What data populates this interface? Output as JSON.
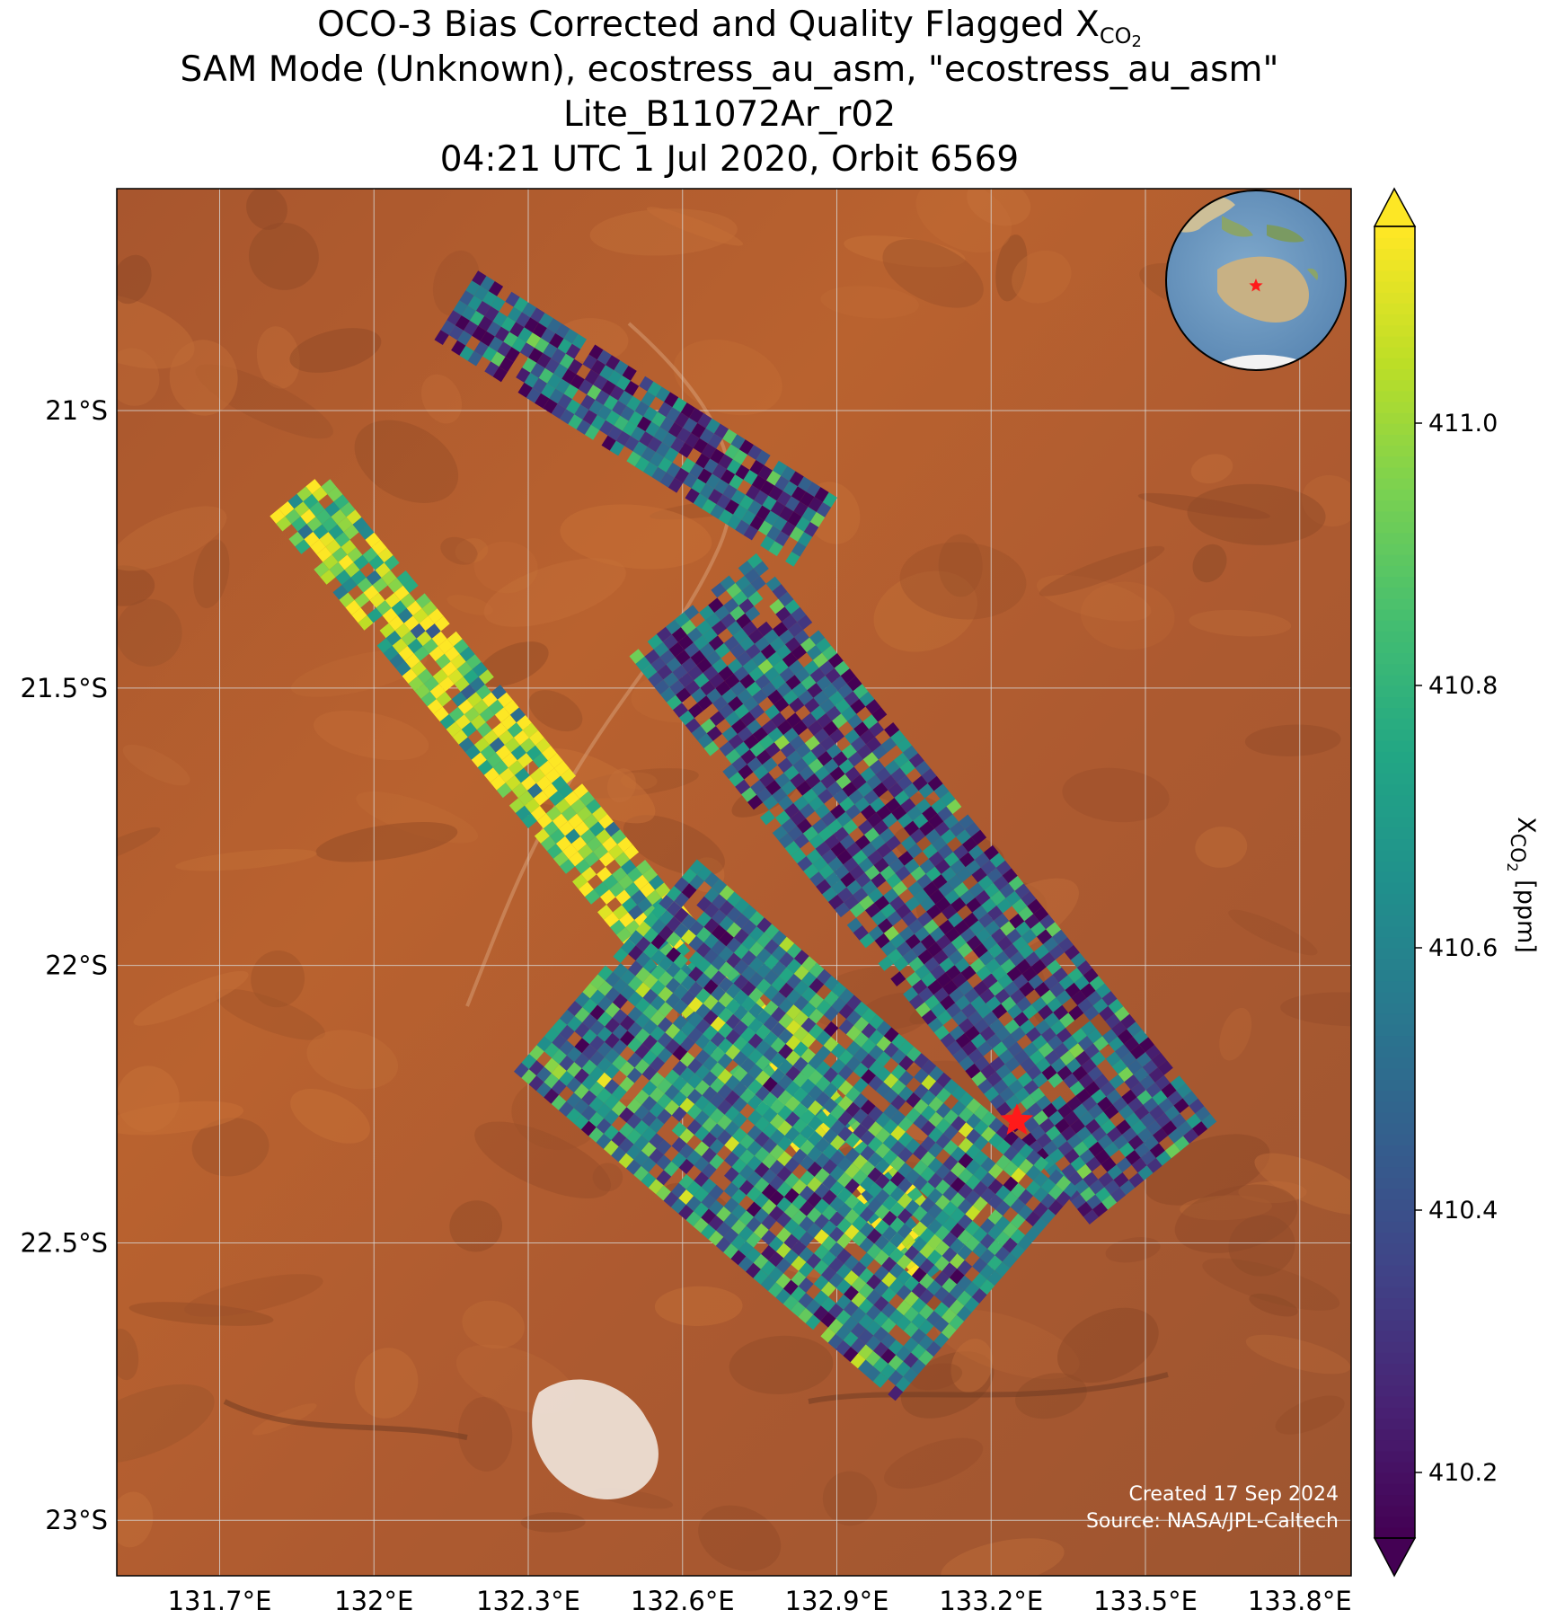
{
  "title": {
    "line1_prefix": "OCO-3 Bias Corrected and Quality Flagged X",
    "line1_sub": "CO",
    "line1_sub2": "2",
    "line2": "SAM Mode (Unknown), ecostress_au_asm, \"ecostress_au_asm\"",
    "line3": "Lite_B11072Ar_r02",
    "line4": "04:21 UTC 1 Jul 2020, Orbit 6569"
  },
  "credits": {
    "created": "Created 17 Sep 2024",
    "source": "Source: NASA/JPL-Caltech"
  },
  "colors": {
    "map_background": "#b45a2c",
    "marker": "#ff1a1a",
    "colormap": "viridis"
  },
  "chart_data": {
    "type": "heatmap",
    "x_ticks": [
      "131.7°E",
      "132°E",
      "132.3°E",
      "132.6°E",
      "132.9°E",
      "133.2°E",
      "133.5°E",
      "133.8°E"
    ],
    "x_tick_values": [
      131.7,
      132.0,
      132.3,
      132.6,
      132.9,
      133.2,
      133.5,
      133.8
    ],
    "y_ticks": [
      "21°S",
      "21.5°S",
      "22°S",
      "22.5°S",
      "23°S"
    ],
    "y_tick_values": [
      -21.0,
      -21.5,
      -22.0,
      -22.5,
      -23.0
    ],
    "xlim": [
      131.5,
      133.9
    ],
    "ylim": [
      -23.1,
      -20.6
    ],
    "grid": true,
    "target_site": {
      "lon": 133.25,
      "lat": -22.28
    },
    "colorbar": {
      "label_prefix": "X",
      "label_sub": "CO",
      "label_sub2": "2",
      "label_suffix": " [ppm]",
      "ticks": [
        "410.2",
        "410.4",
        "410.6",
        "410.8",
        "411.0"
      ],
      "tick_values": [
        410.2,
        410.4,
        410.6,
        410.8,
        411.0
      ],
      "range": [
        410.15,
        411.15
      ],
      "extend": "both"
    },
    "swaths": [
      {
        "name": "swath-1",
        "lat_start": -20.81,
        "lon_start": 132.16,
        "lat_end": -21.22,
        "lon_end": 132.86,
        "width_deg": 0.16,
        "mean_xco2": 410.45
      },
      {
        "name": "swath-2",
        "lat_start": -21.15,
        "lon_start": 131.85,
        "lat_end": -22.55,
        "lon_end": 133.1,
        "width_deg": 0.15,
        "mean_xco2": 410.95
      },
      {
        "name": "swath-3",
        "lat_start": -21.35,
        "lon_start": 132.62,
        "lat_end": -22.38,
        "lon_end": 133.52,
        "width_deg": 0.32,
        "mean_xco2": 410.45
      },
      {
        "name": "swath-4",
        "lat_start": -22.0,
        "lon_start": 132.45,
        "lat_end": -22.6,
        "lon_end": 133.2,
        "width_deg": 0.55,
        "mean_xco2": 410.6
      }
    ]
  }
}
